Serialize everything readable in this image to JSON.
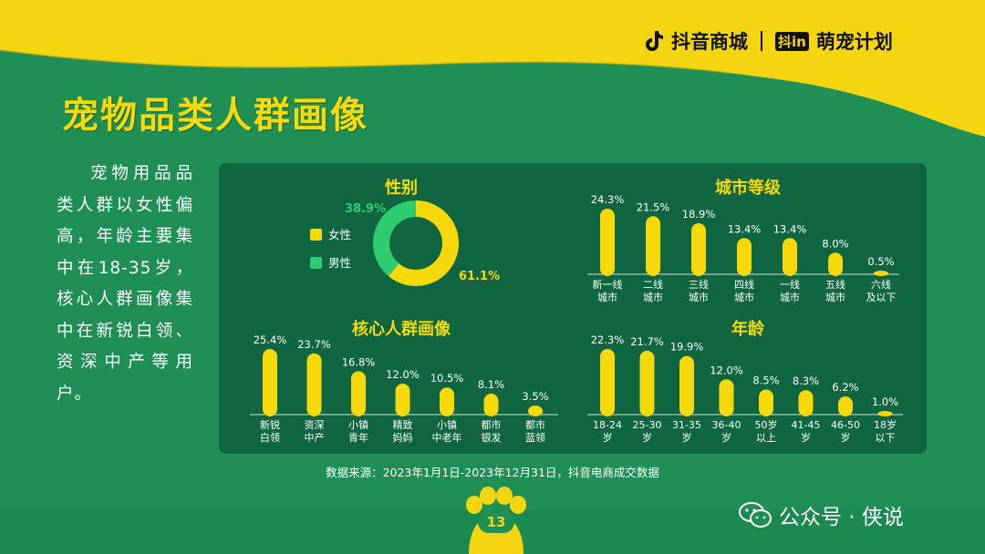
{
  "header": {
    "brand": "抖音商城",
    "campaign": "萌宠计划",
    "campaign_prefix": "抖in"
  },
  "title": "宠物品类人群画像",
  "summary": "宠物用品品类人群以女性偏高，年龄主要集中在18-35岁，核心人群画像集中在新锐白领、资深中产等用户。",
  "source": "数据来源：2023年1月1日-2023年12月31日，抖音电商成交数据",
  "page_number": "13",
  "watermark": "公众号 · 侠说",
  "colors": {
    "background": "#1f8f55",
    "panel": "#0f6640",
    "accent": "#f5d90a",
    "male": "#2ecc71"
  },
  "chart_data": [
    {
      "type": "pie",
      "title": "性别",
      "categories": [
        "女性",
        "男性"
      ],
      "values": [
        61.1,
        38.9
      ],
      "labels": [
        "61.1%",
        "38.9%"
      ],
      "colors": [
        "#f5d90a",
        "#2ecc71"
      ]
    },
    {
      "type": "bar",
      "title": "城市等级",
      "categories": [
        "新一线\n城市",
        "二线\n城市",
        "三线\n城市",
        "四线\n城市",
        "一线\n城市",
        "五线\n城市",
        "六线\n及以下"
      ],
      "values": [
        24.3,
        21.5,
        18.9,
        13.4,
        13.4,
        8.0,
        0.5
      ],
      "labels": [
        "24.3%",
        "21.5%",
        "18.9%",
        "13.4%",
        "13.4%",
        "8.0%",
        "0.5%"
      ]
    },
    {
      "type": "bar",
      "title": "核心人群画像",
      "categories": [
        "新锐\n白领",
        "资深\n中产",
        "小镇\n青年",
        "精致\n妈妈",
        "小镇\n中老年",
        "都市\n银发",
        "都市\n蓝领"
      ],
      "values": [
        25.4,
        23.7,
        16.8,
        12.0,
        10.5,
        8.1,
        3.5
      ],
      "labels": [
        "25.4%",
        "23.7%",
        "16.8%",
        "12.0%",
        "10.5%",
        "8.1%",
        "3.5%"
      ]
    },
    {
      "type": "bar",
      "title": "年龄",
      "categories": [
        "18-24\n岁",
        "25-30\n岁",
        "31-35\n岁",
        "36-40\n岁",
        "50岁\n以上",
        "41-45\n岁",
        "46-50\n岁",
        "18岁\n以下"
      ],
      "values": [
        22.3,
        21.7,
        19.9,
        12.0,
        8.5,
        8.3,
        6.2,
        1.0
      ],
      "labels": [
        "22.3%",
        "21.7%",
        "19.9%",
        "12.0%",
        "8.5%",
        "8.3%",
        "6.2%",
        "1.0%"
      ]
    }
  ]
}
